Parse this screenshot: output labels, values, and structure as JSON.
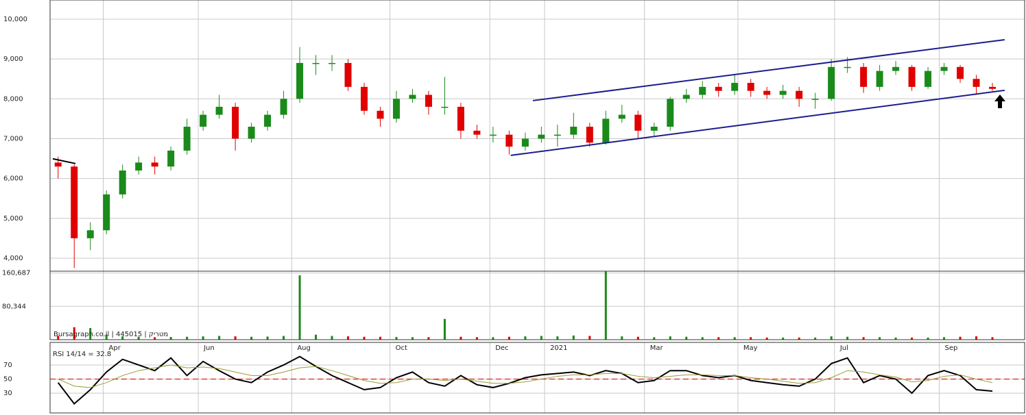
{
  "chart_data": [
    {
      "type": "candlestick",
      "up_color": "#1a8a1a",
      "down_color": "#e00000",
      "grid": true,
      "ylim": [
        3673,
        10481
      ],
      "yticks": [
        {
          "value": 4000,
          "label": "4,000"
        },
        {
          "value": 5000,
          "label": "5,000"
        },
        {
          "value": 6000,
          "label": "6,000"
        },
        {
          "value": 7000,
          "label": "7,000"
        },
        {
          "value": 8000,
          "label": "8,000"
        },
        {
          "value": 9000,
          "label": "9,000"
        },
        {
          "value": 10000,
          "label": "10,000"
        }
      ],
      "open": [
        6400,
        6300,
        4500,
        4700,
        5600,
        6200,
        6400,
        6300,
        6700,
        7300,
        7600,
        7800,
        7000,
        7300,
        7600,
        8000,
        8900,
        8900,
        8900,
        8300,
        7700,
        7500,
        8000,
        8100,
        7800,
        7800,
        7200,
        7100,
        7100,
        6800,
        7000,
        7100,
        7100,
        7300,
        6900,
        7500,
        7600,
        7200,
        7300,
        8000,
        8100,
        8300,
        8200,
        8400,
        8200,
        8100,
        8200,
        8000,
        8000,
        8800,
        8800,
        8300,
        8700,
        8800,
        8300,
        8700,
        8800,
        8500,
        8300
      ],
      "high": [
        6550,
        6350,
        4900,
        5700,
        6350,
        6550,
        6550,
        6800,
        7500,
        7700,
        8100,
        7900,
        7400,
        7700,
        8200,
        9300,
        9100,
        9100,
        9000,
        8400,
        7800,
        8200,
        8250,
        8200,
        8550,
        7900,
        7350,
        7300,
        7200,
        7150,
        7300,
        7350,
        7650,
        7400,
        7700,
        7850,
        7700,
        7400,
        8050,
        8250,
        8450,
        8400,
        8600,
        8500,
        8300,
        8350,
        8300,
        8150,
        9000,
        9050,
        8900,
        8850,
        8950,
        8850,
        8800,
        8900,
        8850,
        8600,
        8400
      ],
      "low": [
        6000,
        3750,
        4200,
        4600,
        5500,
        6100,
        6100,
        6200,
        6600,
        7200,
        7500,
        6700,
        6900,
        7200,
        7500,
        7900,
        8600,
        8700,
        8200,
        7600,
        7300,
        7400,
        7900,
        7600,
        7600,
        7000,
        7000,
        6900,
        6600,
        6700,
        6900,
        6800,
        7000,
        6800,
        6850,
        7400,
        7000,
        7050,
        7200,
        7900,
        8000,
        8050,
        8100,
        8050,
        8000,
        8000,
        7800,
        7750,
        7950,
        8650,
        8150,
        8200,
        8600,
        8200,
        8250,
        8600,
        8400,
        8100,
        8200
      ],
      "close": [
        6300,
        4500,
        4700,
        5600,
        6200,
        6400,
        6300,
        6700,
        7300,
        7600,
        7800,
        7000,
        7300,
        7600,
        8000,
        8900,
        8900,
        8900,
        8300,
        7700,
        7500,
        8000,
        8100,
        7800,
        7800,
        7200,
        7100,
        7100,
        6800,
        7000,
        7100,
        7100,
        7300,
        6900,
        7500,
        7600,
        7200,
        7300,
        8000,
        8100,
        8300,
        8200,
        8400,
        8200,
        8100,
        8200,
        8000,
        8000,
        8800,
        8800,
        8300,
        8700,
        8800,
        8300,
        8700,
        8800,
        8500,
        8300,
        8250
      ],
      "trend_lines": [
        {
          "color": "#1c1c8c",
          "x": [
            29.47,
            58.76
          ],
          "y": [
            7955,
            9484
          ]
        },
        {
          "color": "#1c1c8c",
          "x": [
            28.1,
            58.76
          ],
          "y": [
            6581,
            8213
          ]
        },
        {
          "color": "#000000",
          "x": [
            -0.33,
            1.08
          ],
          "y": [
            6495,
            6375
          ]
        }
      ]
    },
    {
      "type": "bar",
      "watermark": "Bursagraph.co.il | 445015 | מטריק",
      "ylim": [
        0,
        165000
      ],
      "yticks": [
        {
          "value": 80344,
          "label": "80,344"
        },
        {
          "value": 160687,
          "label": "160,687"
        }
      ],
      "values": [
        9000,
        30000,
        28000,
        12000,
        8000,
        7000,
        6000,
        6500,
        7000,
        8000,
        9000,
        8000,
        7000,
        7500,
        9000,
        155000,
        12000,
        9000,
        8000,
        7000,
        7000,
        6500,
        6000,
        6000,
        50000,
        7000,
        6000,
        6000,
        7000,
        8000,
        9000,
        8000,
        10000,
        9000,
        164000,
        8000,
        7000,
        6000,
        8000,
        7000,
        6000,
        6000,
        6000,
        6000,
        5000,
        5000,
        5000,
        5000,
        8000,
        7000,
        6000,
        6000,
        5000,
        5000,
        5000,
        6000,
        7000,
        8000,
        6000
      ]
    },
    {
      "type": "line",
      "label": "RSI 14/14 = 32.8",
      "ylim": [
        2,
        102
      ],
      "yticks": [
        30,
        50,
        70
      ],
      "reference_line": {
        "value": 50,
        "color": "#e03030"
      },
      "xlim": [
        -0.5,
        60
      ],
      "xticks": [
        {
          "value": 2.8,
          "label": "Apr"
        },
        {
          "value": 8.7,
          "label": "Jun"
        },
        {
          "value": 14.5,
          "label": "Aug"
        },
        {
          "value": 20.6,
          "label": "Oct"
        },
        {
          "value": 26.8,
          "label": "Dec"
        },
        {
          "value": 30.2,
          "label": "2021"
        },
        {
          "value": 36.4,
          "label": "Mar"
        },
        {
          "value": 42.2,
          "label": "May"
        },
        {
          "value": 48.2,
          "label": "Jul"
        },
        {
          "value": 54.7,
          "label": "Sep"
        }
      ],
      "series": [
        {
          "color": "#000000",
          "values": [
            45,
            15,
            35,
            60,
            78,
            70,
            62,
            80,
            55,
            75,
            62,
            50,
            45,
            60,
            70,
            82,
            68,
            55,
            45,
            35,
            38,
            52,
            60,
            45,
            40,
            55,
            42,
            38,
            44,
            52,
            56,
            58,
            60,
            55,
            62,
            58,
            45,
            48,
            62,
            62,
            55,
            52,
            55,
            48,
            45,
            42,
            40,
            50,
            72,
            80,
            45,
            55,
            50,
            30,
            55,
            62,
            55,
            35,
            33
          ]
        },
        {
          "color": "#9a9a30",
          "values": [
            50,
            40,
            38,
            45,
            55,
            62,
            66,
            70,
            66,
            67,
            65,
            60,
            55,
            55,
            60,
            66,
            68,
            62,
            55,
            48,
            44,
            45,
            50,
            50,
            48,
            50,
            47,
            44,
            44,
            46,
            50,
            54,
            56,
            56,
            58,
            58,
            54,
            52,
            54,
            56,
            56,
            55,
            55,
            52,
            50,
            47,
            44,
            45,
            52,
            62,
            60,
            56,
            53,
            46,
            48,
            54,
            56,
            50,
            45
          ]
        }
      ]
    }
  ]
}
